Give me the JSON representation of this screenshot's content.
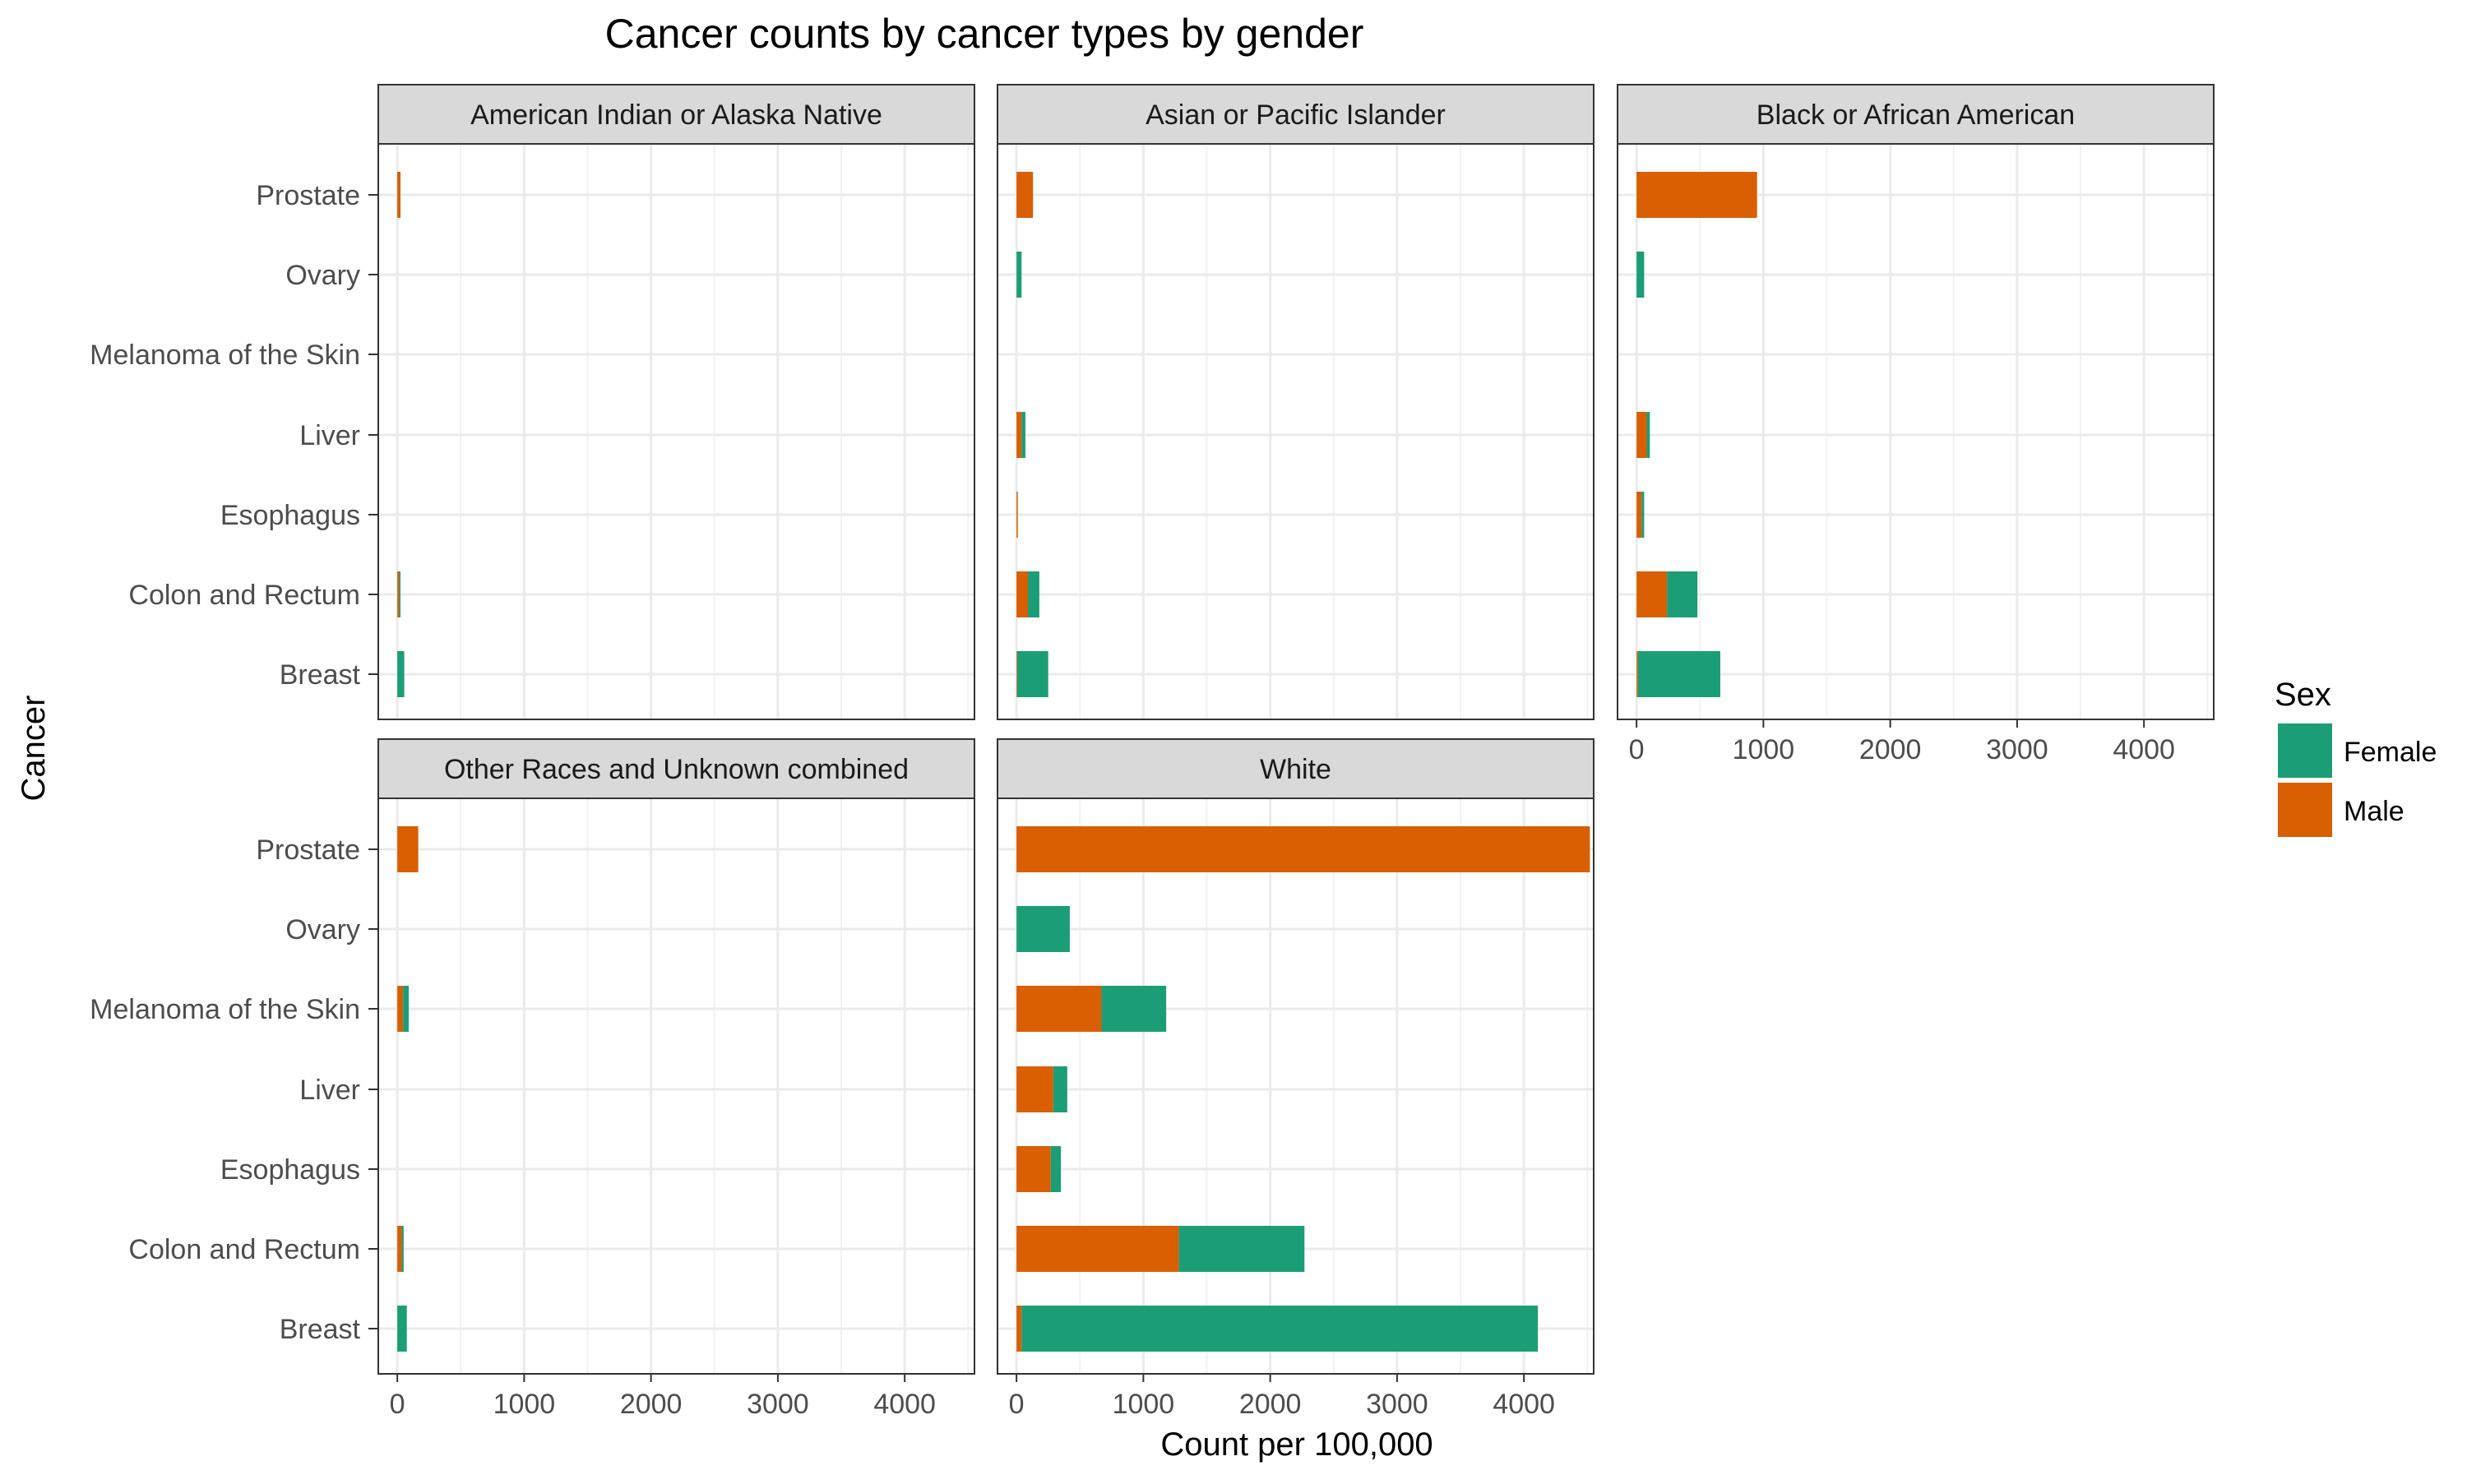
{
  "chart_data": {
    "type": "bar",
    "stacked": true,
    "orientation": "horizontal",
    "facet": "wrap",
    "title": "Cancer counts by cancer types by gender",
    "xlabel": "Count per 100,000",
    "ylabel": "Cancer",
    "xlim": [
      -150,
      4550
    ],
    "xticks": [
      "0",
      "1000",
      "2000",
      "3000",
      "4000"
    ],
    "grid": true,
    "categories": [
      "Prostate",
      "Ovary",
      "Melanoma of the Skin",
      "Liver",
      "Esophagus",
      "Colon and Rectum",
      "Breast"
    ],
    "legend": {
      "title": "Sex",
      "position": "right",
      "items": [
        {
          "name": "Female",
          "color": "#1b9e77"
        },
        {
          "name": "Male",
          "color": "#d95f02"
        }
      ]
    },
    "panels": [
      {
        "name": "American Indian or Alaska Native",
        "series": [
          {
            "name": "Male",
            "values": [
              25,
              0,
              0,
              0,
              0,
              15,
              0
            ]
          },
          {
            "name": "Female",
            "values": [
              0,
              0,
              0,
              0,
              0,
              10,
              55
            ]
          }
        ]
      },
      {
        "name": "Asian or Pacific Islander",
        "series": [
          {
            "name": "Male",
            "values": [
              130,
              0,
              0,
              40,
              10,
              90,
              5
            ]
          },
          {
            "name": "Female",
            "values": [
              0,
              40,
              0,
              30,
              0,
              90,
              245
            ]
          }
        ]
      },
      {
        "name": "Black or African American",
        "series": [
          {
            "name": "Male",
            "values": [
              950,
              0,
              0,
              80,
              40,
              240,
              10
            ]
          },
          {
            "name": "Female",
            "values": [
              0,
              60,
              0,
              25,
              20,
              240,
              650
            ]
          }
        ]
      },
      {
        "name": "Other Races and Unknown combined",
        "series": [
          {
            "name": "Male",
            "values": [
              165,
              0,
              45,
              0,
              0,
              35,
              0
            ]
          },
          {
            "name": "Female",
            "values": [
              0,
              0,
              45,
              0,
              0,
              15,
              75
            ]
          }
        ]
      },
      {
        "name": "White",
        "series": [
          {
            "name": "Male",
            "values": [
              4520,
              0,
              670,
              290,
              270,
              1280,
              40
            ]
          },
          {
            "name": "Female",
            "values": [
              0,
              420,
              510,
              110,
              80,
              990,
              4070
            ]
          }
        ]
      }
    ]
  }
}
